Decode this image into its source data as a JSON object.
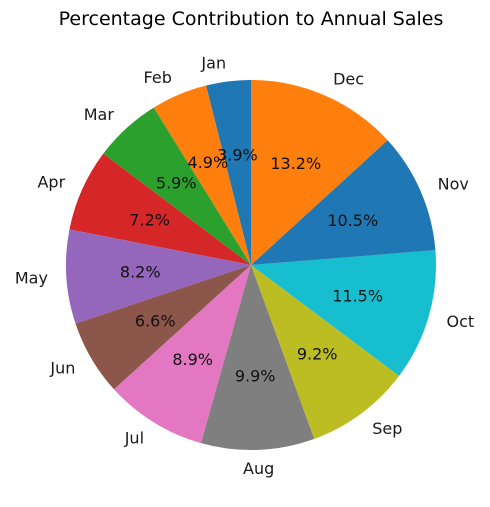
{
  "chart_data": {
    "type": "pie",
    "title": "Percentage Contribution to Annual Sales",
    "start": "top",
    "direction": "counterclockwise",
    "slices": [
      {
        "label": "Jan",
        "value": 3.9,
        "pct_text": "3.9%",
        "color": "#1f77b4"
      },
      {
        "label": "Feb",
        "value": 4.9,
        "pct_text": "4.9%",
        "color": "#ff7f0e"
      },
      {
        "label": "Mar",
        "value": 5.9,
        "pct_text": "5.9%",
        "color": "#2ca02c"
      },
      {
        "label": "Apr",
        "value": 7.2,
        "pct_text": "7.2%",
        "color": "#d62728"
      },
      {
        "label": "May",
        "value": 8.2,
        "pct_text": "8.2%",
        "color": "#9467bd"
      },
      {
        "label": "Jun",
        "value": 6.6,
        "pct_text": "6.6%",
        "color": "#8c564b"
      },
      {
        "label": "Jul",
        "value": 8.9,
        "pct_text": "8.9%",
        "color": "#e377c2"
      },
      {
        "label": "Aug",
        "value": 9.9,
        "pct_text": "9.9%",
        "color": "#7f7f7f"
      },
      {
        "label": "Sep",
        "value": 9.2,
        "pct_text": "9.2%",
        "color": "#bcbd22"
      },
      {
        "label": "Oct",
        "value": 11.5,
        "pct_text": "11.5%",
        "color": "#17becf"
      },
      {
        "label": "Nov",
        "value": 10.5,
        "pct_text": "10.5%",
        "color": "#1f77b4"
      },
      {
        "label": "Dec",
        "value": 13.2,
        "pct_text": "13.2%",
        "color": "#ff7f0e"
      }
    ]
  }
}
